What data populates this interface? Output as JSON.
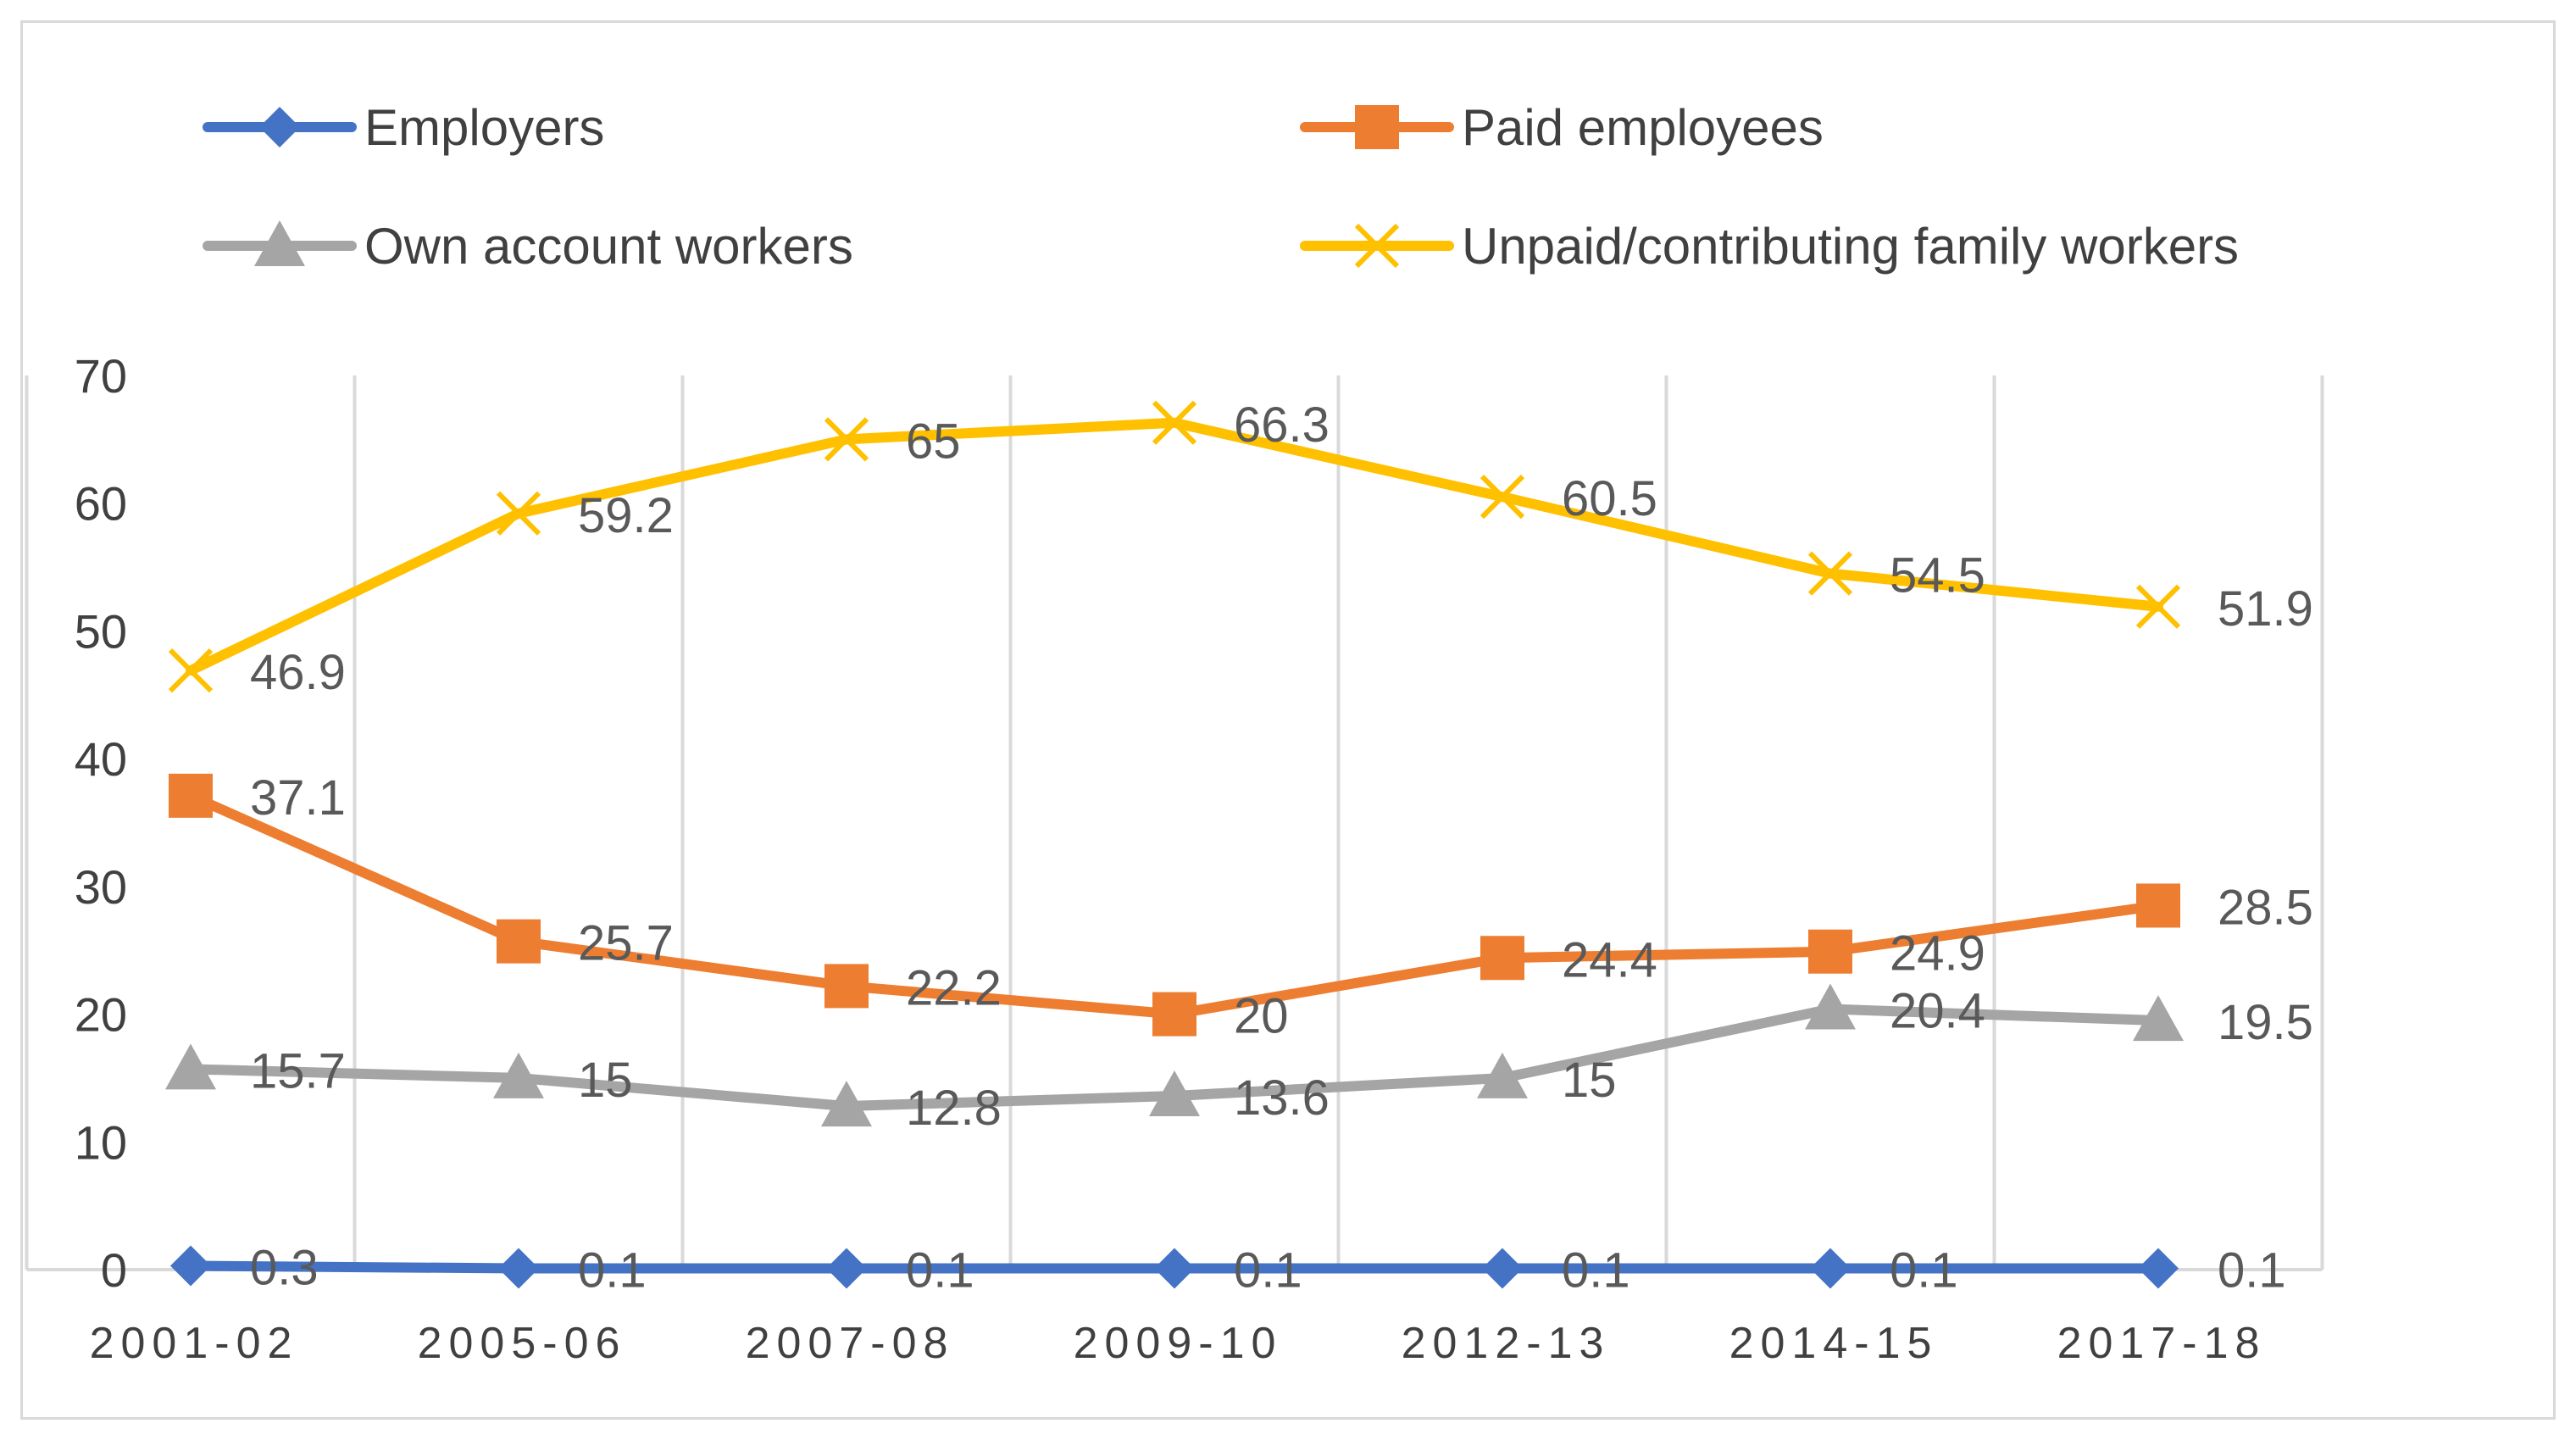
{
  "chart_data": {
    "type": "line",
    "title": "",
    "xlabel": "",
    "ylabel": "",
    "categories": [
      "2001-02",
      "2005-06",
      "2007-08",
      "2009-10",
      "2012-13",
      "2014-15",
      "2017-18"
    ],
    "ylim": [
      0,
      70
    ],
    "yticks": [
      0,
      10,
      20,
      30,
      40,
      50,
      60,
      70
    ],
    "grid": "vertical",
    "legend_position": "top",
    "series": [
      {
        "name": "Employers",
        "color": "#4472c4",
        "marker": "diamond",
        "values": [
          0.3,
          0.1,
          0.1,
          0.1,
          0.1,
          0.1,
          0.1
        ]
      },
      {
        "name": "Paid employees",
        "color": "#ed7d31",
        "marker": "square",
        "values": [
          37.1,
          25.7,
          22.2,
          20,
          24.4,
          24.9,
          28.5
        ]
      },
      {
        "name": "Own account workers",
        "color": "#a5a5a5",
        "marker": "triangle",
        "values": [
          15.7,
          15,
          12.8,
          13.6,
          15,
          20.4,
          19.5
        ]
      },
      {
        "name": "Unpaid/contributing family workers",
        "color": "#ffc000",
        "marker": "x",
        "values": [
          46.9,
          59.2,
          65,
          66.3,
          60.5,
          54.5,
          51.9
        ]
      }
    ]
  }
}
